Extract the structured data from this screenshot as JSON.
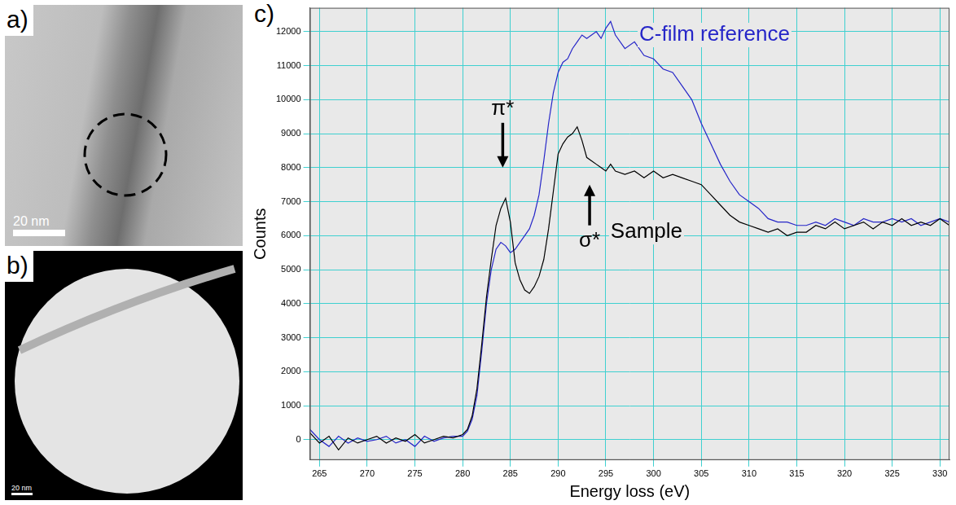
{
  "figure": {
    "panels": [
      {
        "label": "a)",
        "scale_bar": "20 nm"
      },
      {
        "label": "b)",
        "scale_bar": "20 nm"
      },
      {
        "label": "c)"
      }
    ]
  },
  "chart_data": {
    "type": "line",
    "x_label": "Energy loss (eV)",
    "y_label": "Counts",
    "x": [
      264,
      265,
      266,
      267,
      268,
      269,
      270,
      271,
      272,
      273,
      274,
      275,
      276,
      277,
      278,
      279,
      280,
      280.5,
      281,
      281.5,
      282,
      282.5,
      283,
      283.5,
      284,
      284.5,
      285,
      285.5,
      286,
      286.5,
      287,
      287.5,
      288,
      288.5,
      289,
      289.5,
      290,
      290.5,
      291,
      291.5,
      292,
      292.5,
      293,
      293.5,
      294,
      294.5,
      295,
      295.5,
      296,
      297,
      298,
      299,
      300,
      301,
      302,
      303,
      304,
      305,
      306,
      307,
      308,
      309,
      310,
      311,
      312,
      313,
      314,
      315,
      316,
      317,
      318,
      319,
      320,
      321,
      322,
      323,
      324,
      325,
      326,
      327,
      328,
      329,
      330,
      331
    ],
    "series": [
      {
        "name": "Sample",
        "color": "#000000",
        "label_x": 295.5,
        "label_y": 6100,
        "values": [
          200,
          -100,
          100,
          -300,
          50,
          -100,
          0,
          100,
          -100,
          50,
          -50,
          150,
          -100,
          0,
          100,
          50,
          150,
          300,
          700,
          1500,
          2800,
          4200,
          5300,
          6300,
          6800,
          7100,
          6400,
          5200,
          4700,
          4400,
          4300,
          4500,
          4800,
          5300,
          6200,
          7300,
          8400,
          8700,
          8900,
          9000,
          9200,
          8800,
          8300,
          8200,
          8100,
          8000,
          7900,
          8100,
          7900,
          7800,
          7900,
          7700,
          7900,
          7700,
          7800,
          7700,
          7600,
          7500,
          7200,
          6900,
          6600,
          6400,
          6300,
          6200,
          6100,
          6200,
          6000,
          6100,
          6100,
          6300,
          6200,
          6400,
          6200,
          6300,
          6400,
          6200,
          6400,
          6300,
          6500,
          6300,
          6400,
          6300,
          6500,
          6300
        ]
      },
      {
        "name": "C-film reference",
        "color": "#2626c8",
        "label_x": 298.5,
        "label_y": 11900,
        "values": [
          300,
          0,
          -200,
          100,
          -100,
          50,
          -50,
          0,
          100,
          -100,
          0,
          -200,
          100,
          -50,
          50,
          100,
          100,
          250,
          600,
          1300,
          2600,
          4000,
          5000,
          5600,
          5800,
          5700,
          5500,
          5600,
          5800,
          6000,
          6200,
          6600,
          7200,
          8200,
          9300,
          10200,
          10800,
          11100,
          11200,
          11500,
          11700,
          11900,
          11800,
          11900,
          12000,
          11800,
          12100,
          12300,
          11900,
          11500,
          11700,
          11300,
          11200,
          10900,
          10800,
          10400,
          10000,
          9300,
          8700,
          8100,
          7600,
          7200,
          7000,
          6800,
          6500,
          6400,
          6400,
          6300,
          6300,
          6400,
          6300,
          6500,
          6400,
          6300,
          6500,
          6400,
          6400,
          6500,
          6400,
          6500,
          6300,
          6400,
          6500,
          6400
        ]
      }
    ],
    "xlim": [
      264,
      331
    ],
    "xticks": [
      265,
      270,
      275,
      280,
      285,
      290,
      295,
      300,
      305,
      310,
      315,
      320,
      325,
      330
    ],
    "ylim": [
      -600,
      12700
    ],
    "yticks": [
      0,
      1000,
      2000,
      3000,
      4000,
      5000,
      6000,
      7000,
      8000,
      9000,
      10000,
      11000,
      12000
    ],
    "grid": true,
    "annotations": [
      {
        "text": "π*",
        "x": 284.2,
        "y": 8000,
        "arrow": "down"
      },
      {
        "text": "σ*",
        "x": 293.3,
        "y": 7500,
        "arrow": "up"
      }
    ]
  }
}
